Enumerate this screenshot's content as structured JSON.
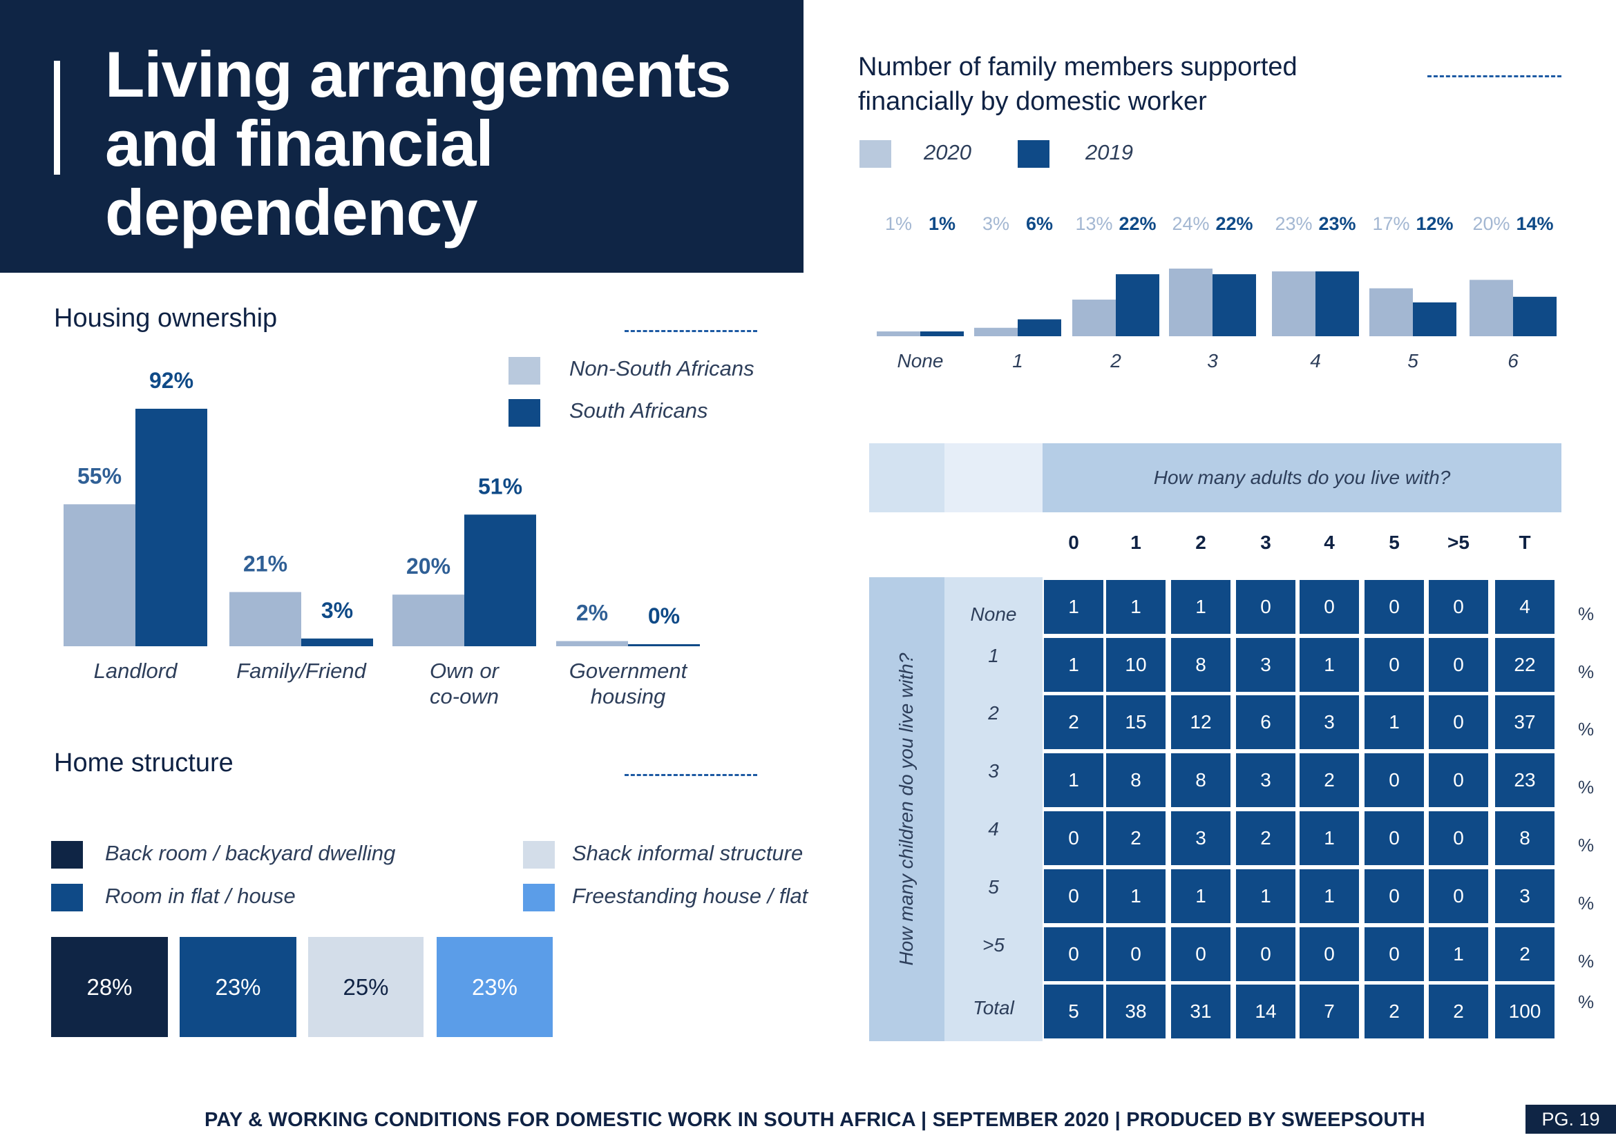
{
  "title": {
    "line1": "Living arrangements",
    "line2": "and financial",
    "line3": "dependency"
  },
  "colors": {
    "navy": "#0f2545",
    "dark_blue": "#0f4a87",
    "light_blue_grey": "#a3b7d2",
    "pale_grey_blue": "#d3dde9",
    "sky_blue": "#5b9de8"
  },
  "housing": {
    "heading": "Housing ownership",
    "legend": {
      "non_sa": "Non-South Africans",
      "sa": "South Africans"
    }
  },
  "home_structure": {
    "heading": "Home structure",
    "legend": [
      "Back room / backyard dwelling",
      "Room in flat / house",
      "Shack informal structure",
      "Freestanding house / flat"
    ],
    "values": [
      "28%",
      "23%",
      "25%",
      "23%"
    ]
  },
  "family": {
    "heading_line1": "Number of family members supported",
    "heading_line2": "financially by domestic worker",
    "legend": {
      "y2020": "2020",
      "y2019": "2019"
    }
  },
  "matrix": {
    "column_title": "How many adults do you live with?",
    "row_title": "How many children do you live with?",
    "columns": [
      "0",
      "1",
      "2",
      "3",
      "4",
      "5",
      ">5",
      "T"
    ],
    "rows": [
      {
        "label": "None",
        "cells": [
          "1",
          "1",
          "1",
          "0",
          "0",
          "0",
          "0",
          "4"
        ]
      },
      {
        "label": "1",
        "cells": [
          "1",
          "10",
          "8",
          "3",
          "1",
          "0",
          "0",
          "22"
        ]
      },
      {
        "label": "2",
        "cells": [
          "2",
          "15",
          "12",
          "6",
          "3",
          "1",
          "0",
          "37"
        ]
      },
      {
        "label": "3",
        "cells": [
          "1",
          "8",
          "8",
          "3",
          "2",
          "0",
          "0",
          "23"
        ]
      },
      {
        "label": "4",
        "cells": [
          "0",
          "2",
          "3",
          "2",
          "1",
          "0",
          "0",
          "8"
        ]
      },
      {
        "label": "5",
        "cells": [
          "0",
          "1",
          "1",
          "1",
          "1",
          "0",
          "0",
          "3"
        ]
      },
      {
        "label": ">5",
        "cells": [
          "0",
          "0",
          "0",
          "0",
          "0",
          "0",
          "1",
          "2"
        ]
      },
      {
        "label": "Total",
        "cells": [
          "5",
          "38",
          "31",
          "14",
          "7",
          "2",
          "2",
          "100"
        ]
      }
    ],
    "unit": "%"
  },
  "chart_data": [
    {
      "type": "bar",
      "title": "Housing ownership",
      "categories": [
        "Landlord",
        "Family/Friend",
        "Own or co-own",
        "Government housing"
      ],
      "series": [
        {
          "name": "Non-South Africans",
          "values": [
            55,
            21,
            20,
            2
          ],
          "labels": [
            "55%",
            "21%",
            "20%",
            "2%"
          ],
          "color": "#a3b7d2"
        },
        {
          "name": "South Africans",
          "values": [
            92,
            3,
            51,
            0
          ],
          "labels": [
            "92%",
            "3%",
            "51%",
            "0%"
          ],
          "color": "#0f4a87"
        }
      ],
      "ylim": [
        0,
        100
      ],
      "grid": false,
      "legend_position": "top-right"
    },
    {
      "type": "bar",
      "title": "Number of family members supported financially by domestic worker",
      "categories": [
        "None",
        "1",
        "2",
        "3",
        "4",
        "5",
        "6"
      ],
      "series": [
        {
          "name": "2020",
          "values": [
            1,
            3,
            13,
            24,
            23,
            17,
            20
          ],
          "labels": [
            "1%",
            "3%",
            "13%",
            "24%",
            "23%",
            "17%",
            "20%"
          ],
          "color": "#a3b7d2"
        },
        {
          "name": "2019",
          "values": [
            1,
            6,
            22,
            22,
            23,
            12,
            14
          ],
          "labels": [
            "1%",
            "6%",
            "22%",
            "22%",
            "23%",
            "12%",
            "14%"
          ],
          "color": "#0f4a87"
        }
      ],
      "ylim": [
        0,
        25
      ],
      "grid": false,
      "legend_position": "top-left"
    }
  ],
  "footer": {
    "text": "PAY & WORKING CONDITIONS FOR DOMESTIC WORK IN SOUTH AFRICA  |  SEPTEMBER 2020 | PRODUCED BY SWEEPSOUTH",
    "page": "PG. 19"
  }
}
